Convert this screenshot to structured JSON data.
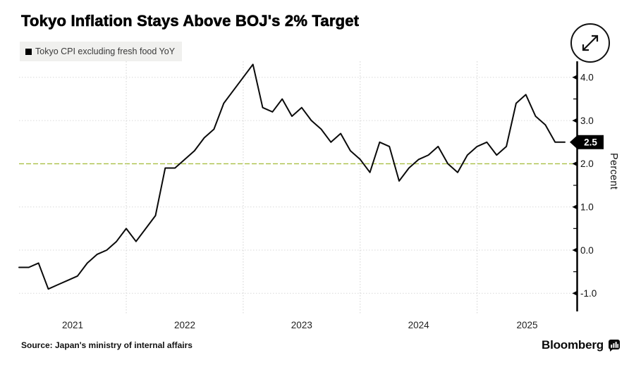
{
  "title": "Tokyo Inflation Stays Above BOJ's 2% Target",
  "legend": {
    "label": "Tokyo CPI excluding fresh food YoY",
    "swatch_color": "#000000"
  },
  "source": "Source: Japan's ministry of internal affairs",
  "branding": {
    "logo_text": "Bloomberg"
  },
  "y_axis": {
    "title": "Percent",
    "major_ticks": [
      4.0,
      3.0,
      2.0,
      1.0,
      0.0,
      -1.0
    ],
    "major_tick_labels": [
      "4.0",
      "3.0",
      "2.0",
      "1.0",
      "0.0",
      "-1.0"
    ],
    "minor_ticks": [
      3.5,
      2.5,
      1.5,
      0.5,
      -0.5
    ]
  },
  "x_axis": {
    "year_labels": [
      "2021",
      "2022",
      "2023",
      "2024",
      "2025"
    ]
  },
  "target_line": {
    "value": 2.0,
    "color": "#a9bf45"
  },
  "colors": {
    "line": "#0a0a0a",
    "grid": "#d9d9d9",
    "axis": "#000000",
    "badge_bg": "#000000",
    "badge_text": "#ffffff"
  },
  "chart_data": {
    "type": "line",
    "title": "Tokyo Inflation Stays Above BOJ's 2% Target",
    "series_name": "Tokyo CPI excluding fresh food YoY",
    "ylabel": "Percent",
    "ylim": [
      -1.4,
      4.35
    ],
    "grid": true,
    "target_reference": 2.0,
    "last_value_label": "2.5",
    "x": [
      "2021-01",
      "2021-02",
      "2021-03",
      "2021-04",
      "2021-05",
      "2021-06",
      "2021-07",
      "2021-08",
      "2021-09",
      "2021-10",
      "2021-11",
      "2021-12",
      "2022-01",
      "2022-02",
      "2022-03",
      "2022-04",
      "2022-05",
      "2022-06",
      "2022-07",
      "2022-08",
      "2022-09",
      "2022-10",
      "2022-11",
      "2022-12",
      "2023-01",
      "2023-02",
      "2023-03",
      "2023-04",
      "2023-05",
      "2023-06",
      "2023-07",
      "2023-08",
      "2023-09",
      "2023-10",
      "2023-11",
      "2023-12",
      "2024-01",
      "2024-02",
      "2024-03",
      "2024-04",
      "2024-05",
      "2024-06",
      "2024-07",
      "2024-08",
      "2024-09",
      "2024-10",
      "2024-11",
      "2024-12",
      "2025-01",
      "2025-02",
      "2025-03",
      "2025-04",
      "2025-05",
      "2025-06",
      "2025-07",
      "2025-08",
      "2025-09"
    ],
    "values": [
      -0.4,
      -0.4,
      -0.3,
      -0.9,
      -0.8,
      -0.7,
      -0.6,
      -0.3,
      -0.1,
      0.0,
      0.2,
      0.5,
      0.2,
      0.5,
      0.8,
      1.9,
      1.9,
      2.1,
      2.3,
      2.6,
      2.8,
      3.4,
      3.7,
      4.0,
      4.3,
      3.3,
      3.2,
      3.5,
      3.1,
      3.3,
      3.0,
      2.8,
      2.5,
      2.7,
      2.3,
      2.1,
      1.8,
      2.5,
      2.4,
      1.6,
      1.9,
      2.1,
      2.2,
      2.4,
      2.0,
      1.8,
      2.2,
      2.4,
      2.5,
      2.2,
      2.4,
      3.4,
      3.6,
      3.1,
      2.9,
      2.5,
      2.5
    ]
  }
}
